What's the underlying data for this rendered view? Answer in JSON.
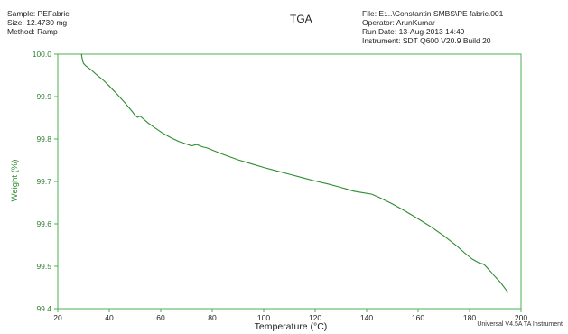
{
  "header": {
    "sample": "Sample: PEFabric",
    "size": "Size: 12.4730 mg",
    "method": "Method: Ramp",
    "title": "TGA",
    "file": "File: E:...\\Constantin SMBS\\PE fabric.001",
    "operator": "Operator: ArunKumar",
    "run_date": "Run Date: 13-Aug-2013 14:49",
    "instrument": "Instrument: SDT Q600 V20.9 Build 20"
  },
  "footer": "Universal V4.5A TA Instrument",
  "colors": {
    "curve": "#2e8b2e",
    "axis_frame": "#4caf50",
    "y_label": "#2e8b2e",
    "tick_text": "#2e7d32"
  },
  "chart_data": {
    "type": "line",
    "title": "TGA",
    "xlabel": "Temperature (°C)",
    "ylabel": "Weight (%)",
    "xlim": [
      20,
      200
    ],
    "ylim": [
      99.4,
      100.0
    ],
    "x_ticks": [
      20,
      40,
      60,
      80,
      100,
      120,
      140,
      160,
      180,
      200
    ],
    "y_ticks": [
      "100.0",
      "99.9",
      "99.8",
      "99.7",
      "99.6",
      "99.5",
      "99.4"
    ],
    "grid": false,
    "series": [
      {
        "x": [
          29.2,
          29.6,
          30,
          31,
          33,
          35,
          38,
          40,
          43,
          46,
          49,
          50,
          51,
          52,
          55,
          58,
          61,
          64,
          67,
          70,
          72,
          74,
          76,
          78,
          80,
          85,
          90,
          95,
          100,
          105,
          110,
          115,
          120,
          125,
          130,
          135,
          140,
          142,
          145,
          150,
          155,
          160,
          165,
          170,
          175,
          178,
          181,
          184,
          185,
          186,
          188,
          190,
          192,
          194,
          195
        ],
        "y": [
          100.0,
          99.985,
          99.978,
          99.972,
          99.963,
          99.952,
          99.937,
          99.925,
          99.906,
          99.886,
          99.864,
          99.856,
          99.851,
          99.854,
          99.838,
          99.825,
          99.813,
          99.803,
          99.794,
          99.788,
          99.784,
          99.787,
          99.782,
          99.779,
          99.774,
          99.762,
          99.751,
          99.742,
          99.733,
          99.725,
          99.717,
          99.709,
          99.701,
          99.694,
          99.686,
          99.677,
          99.672,
          99.67,
          99.662,
          99.647,
          99.63,
          99.612,
          99.593,
          99.572,
          99.548,
          99.532,
          99.517,
          99.507,
          99.506,
          99.502,
          99.489,
          99.475,
          99.462,
          99.446,
          99.438
        ]
      }
    ]
  }
}
